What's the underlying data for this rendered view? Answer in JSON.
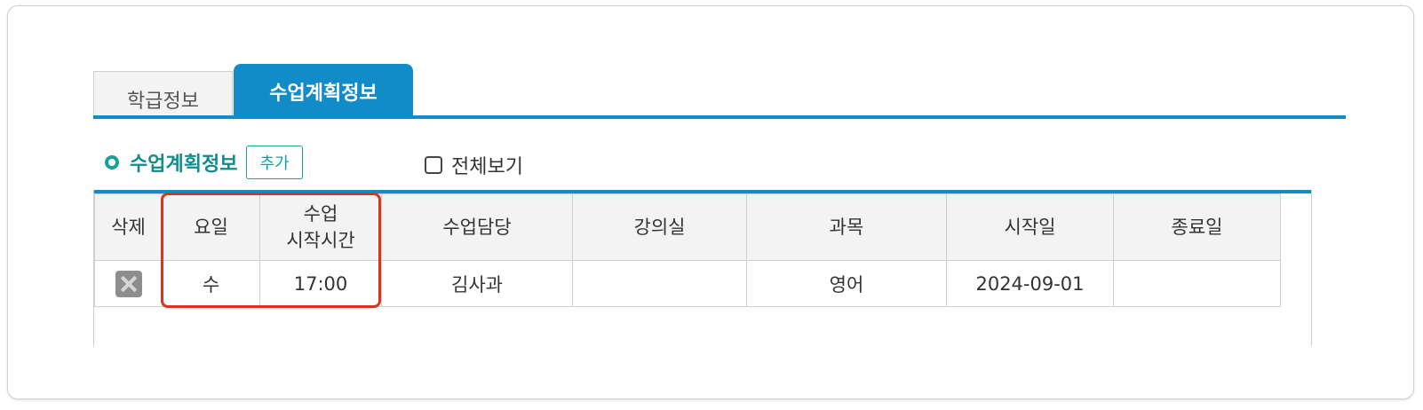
{
  "tabs": [
    {
      "label": "학급정보",
      "active": false
    },
    {
      "label": "수업계획정보",
      "active": true
    }
  ],
  "section": {
    "title": "수업계획정보",
    "add_label": "추가",
    "show_all_label": "전체보기",
    "show_all_checked": false
  },
  "table": {
    "headers": {
      "delete": "삭제",
      "day": "요일",
      "start_time_line1": "수업",
      "start_time_line2": "시작시간",
      "teacher": "수업담당",
      "classroom": "강의실",
      "subject": "과목",
      "start_date": "시작일",
      "end_date": "종료일"
    },
    "rows": [
      {
        "day": "수",
        "start_time": "17:00",
        "teacher": "김사과",
        "classroom": "",
        "subject": "영어",
        "start_date": "2024-09-01",
        "end_date": ""
      }
    ]
  },
  "colors": {
    "accent": "#128cc8",
    "section_title": "#138c8c",
    "highlight": "#d8361c"
  }
}
